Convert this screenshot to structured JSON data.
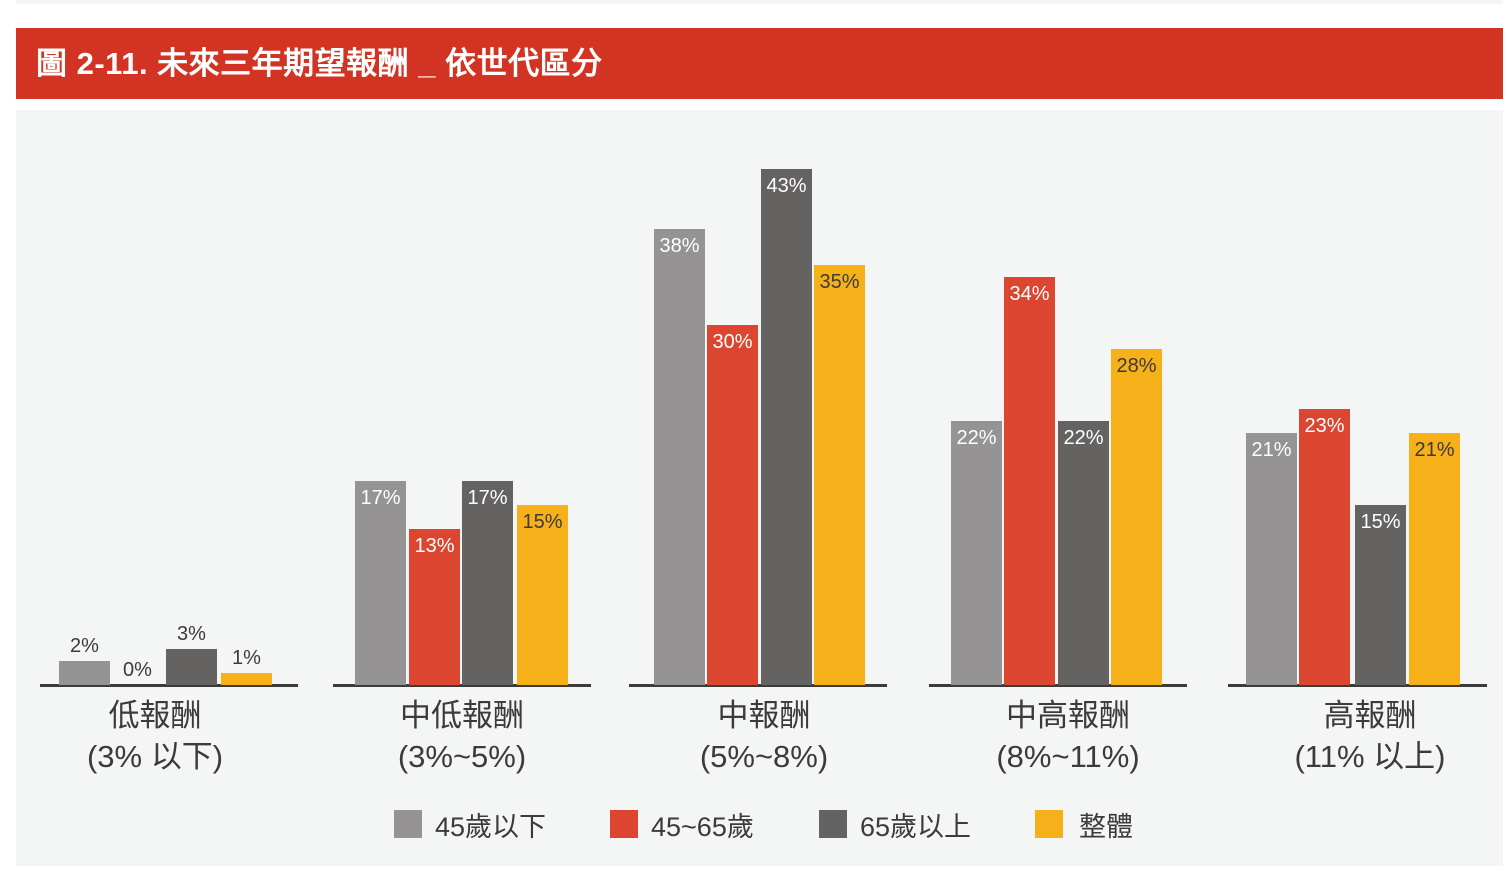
{
  "title": "圖 2-11. 未來三年期望報酬 _ 依世代區分",
  "colors": {
    "title_bar": "#d33322",
    "panel_bg": "#f4f5f5",
    "series_under45": "#959393",
    "series_45to65": "#dc4630",
    "series_over65": "#656262",
    "series_overall": "#f5b01a",
    "label_light": "#ffffff",
    "label_dark": "#3c3a3a"
  },
  "legend": [
    {
      "label": "45歲以下",
      "color": "#959393"
    },
    {
      "label": "45~65歲",
      "color": "#dc4630"
    },
    {
      "label": "65歲以上",
      "color": "#656262"
    },
    {
      "label": "整體",
      "color": "#f5b01a"
    }
  ],
  "categories": [
    {
      "line1": "低報酬",
      "line2": "(3% 以下)"
    },
    {
      "line1": "中低報酬",
      "line2": "(3%~5%)"
    },
    {
      "line1": "中報酬",
      "line2": "(5%~8%)"
    },
    {
      "line1": "中高報酬",
      "line2": "(8%~11%)"
    },
    {
      "line1": "高報酬",
      "line2": "(11% 以上)"
    }
  ],
  "bars": [
    [
      {
        "label": "2%",
        "value": 2
      },
      {
        "label": "0%",
        "value": 0
      },
      {
        "label": "3%",
        "value": 3
      },
      {
        "label": "1%",
        "value": 1
      }
    ],
    [
      {
        "label": "17%",
        "value": 17
      },
      {
        "label": "13%",
        "value": 13
      },
      {
        "label": "17%",
        "value": 17
      },
      {
        "label": "15%",
        "value": 15
      }
    ],
    [
      {
        "label": "38%",
        "value": 38
      },
      {
        "label": "30%",
        "value": 30
      },
      {
        "label": "43%",
        "value": 43
      },
      {
        "label": "35%",
        "value": 35
      }
    ],
    [
      {
        "label": "22%",
        "value": 22
      },
      {
        "label": "34%",
        "value": 34
      },
      {
        "label": "22%",
        "value": 22
      },
      {
        "label": "28%",
        "value": 28
      }
    ],
    [
      {
        "label": "21%",
        "value": 21
      },
      {
        "label": "23%",
        "value": 23
      },
      {
        "label": "15%",
        "value": 15
      },
      {
        "label": "21%",
        "value": 21
      }
    ]
  ],
  "chart_data": {
    "type": "bar",
    "title": "圖 2-11. 未來三年期望報酬 _ 依世代區分",
    "xlabel": "",
    "ylabel": "",
    "categories": [
      "低報酬 (3% 以下)",
      "中低報酬 (3%~5%)",
      "中報酬 (5%~8%)",
      "中高報酬 (8%~11%)",
      "高報酬 (11% 以上)"
    ],
    "series": [
      {
        "name": "45歲以下",
        "color": "#959393",
        "values": [
          2,
          17,
          38,
          22,
          21
        ]
      },
      {
        "name": "45~65歲",
        "color": "#dc4630",
        "values": [
          0,
          13,
          30,
          34,
          23
        ]
      },
      {
        "name": "65歲以上",
        "color": "#656262",
        "values": [
          3,
          17,
          43,
          22,
          15
        ]
      },
      {
        "name": "整體",
        "color": "#f5b01a",
        "values": [
          1,
          15,
          35,
          28,
          21
        ]
      }
    ],
    "unit": "%",
    "ylim": [
      0,
      45
    ],
    "grid": false,
    "legend_position": "bottom",
    "data_labels": true
  }
}
